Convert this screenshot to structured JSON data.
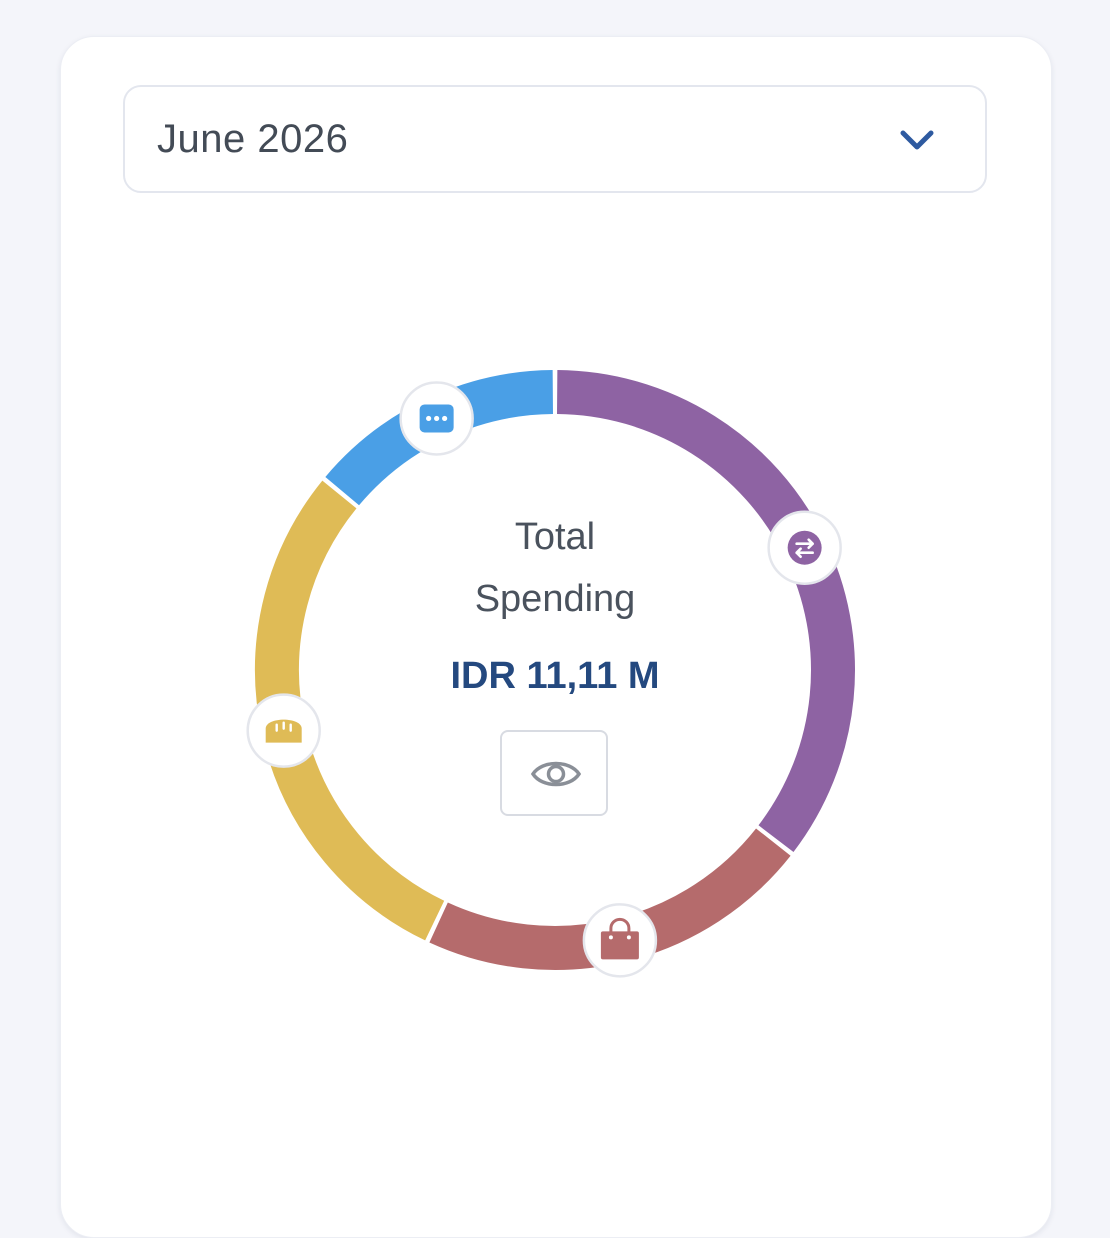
{
  "month_selector": {
    "value": "June 2026",
    "icon": "chevron-down-icon"
  },
  "summary": {
    "title_line1": "Total",
    "title_line2": "Spending",
    "amount": "IDR 11,11 M",
    "toggle_icon": "eye-icon"
  },
  "chart_data": {
    "type": "donut",
    "segments": [
      {
        "category": "transfer",
        "icon": "transfer-icon",
        "color": "#8e63a3",
        "share": 0.355
      },
      {
        "category": "shopping",
        "icon": "shopping-bag-icon",
        "color": "#b56b6c",
        "share": 0.215
      },
      {
        "category": "food",
        "icon": "bread-icon",
        "color": "#dfbb56",
        "share": 0.29
      },
      {
        "category": "others",
        "icon": "more-icon",
        "color": "#4a9fe6",
        "share": 0.14
      }
    ]
  }
}
